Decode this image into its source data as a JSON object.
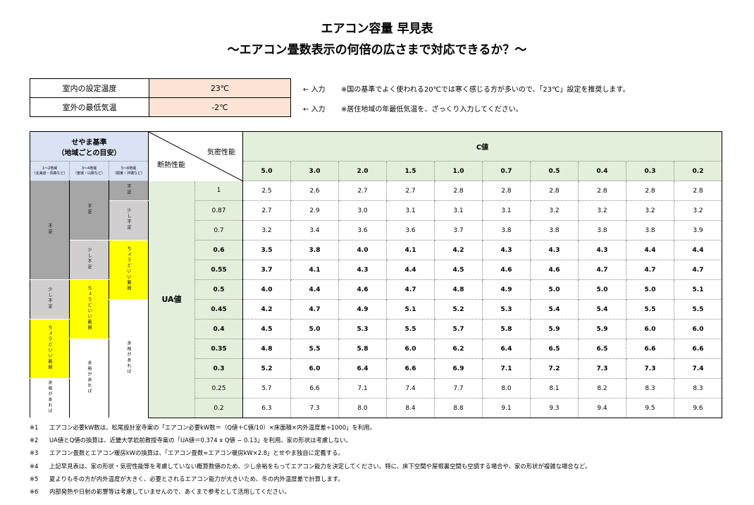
{
  "title": "エアコン容量 早見表",
  "subtitle": "～エアコン畳数表示の何倍の広さまで対応できるか？～",
  "settings": [
    {
      "label": "室内の設定温度",
      "value": "23℃",
      "arrow": "← 入力",
      "note": "※国の基準でよく使われる20℃では寒く感じる方が多いので、「23℃」設定を推奨します。"
    },
    {
      "label": "室外の最低気温",
      "value": "-2℃",
      "arrow": "← 入力",
      "note": "※居住地域の年最低気温を、ざっくり入力してください。"
    }
  ],
  "table": {
    "seyama_header": "せやま基準\n（地域ごとの目安）",
    "regions": [
      "1～2地域\n（北海道・青森など）",
      "3～4地域\n（宮城・山梨など）",
      "5～8地域\n（関東・沖縄など）"
    ],
    "airtight_label": "気密性能",
    "insulation_label": "断熱性能",
    "c_value_label": "C値",
    "ua_label": "UA値",
    "c_values": [
      "5.0",
      "3.0",
      "2.0",
      "1.5",
      "1.0",
      "0.7",
      "0.5",
      "0.4",
      "0.3",
      "0.2"
    ],
    "rows": [
      {
        "ua": "1",
        "bold": false,
        "values": [
          "2.5",
          "2.6",
          "2.7",
          "2.7",
          "2.8",
          "2.8",
          "2.8",
          "2.8",
          "2.8",
          "2.8"
        ]
      },
      {
        "ua": "0.87",
        "bold": false,
        "values": [
          "2.7",
          "2.9",
          "3.0",
          "3.1",
          "3.1",
          "3.1",
          "3.2",
          "3.2",
          "3.2",
          "3.2"
        ]
      },
      {
        "ua": "0.7",
        "bold": false,
        "values": [
          "3.2",
          "3.4",
          "3.6",
          "3.6",
          "3.7",
          "3.8",
          "3.8",
          "3.8",
          "3.8",
          "3.9"
        ]
      },
      {
        "ua": "0.6",
        "bold": true,
        "values": [
          "3.5",
          "3.8",
          "4.0",
          "4.1",
          "4.2",
          "4.3",
          "4.3",
          "4.3",
          "4.4",
          "4.4"
        ]
      },
      {
        "ua": "0.55",
        "bold": true,
        "values": [
          "3.7",
          "4.1",
          "4.3",
          "4.4",
          "4.5",
          "4.6",
          "4.6",
          "4.7",
          "4.7",
          "4.7"
        ]
      },
      {
        "ua": "0.5",
        "bold": true,
        "values": [
          "4.0",
          "4.4",
          "4.6",
          "4.7",
          "4.8",
          "4.9",
          "5.0",
          "5.0",
          "5.0",
          "5.1"
        ]
      },
      {
        "ua": "0.45",
        "bold": true,
        "values": [
          "4.2",
          "4.7",
          "4.9",
          "5.1",
          "5.2",
          "5.3",
          "5.4",
          "5.4",
          "5.5",
          "5.5"
        ]
      },
      {
        "ua": "0.4",
        "bold": true,
        "values": [
          "4.5",
          "5.0",
          "5.3",
          "5.5",
          "5.7",
          "5.8",
          "5.9",
          "5.9",
          "6.0",
          "6.0"
        ]
      },
      {
        "ua": "0.35",
        "bold": true,
        "values": [
          "4.8",
          "5.5",
          "5.8",
          "6.0",
          "6.2",
          "6.4",
          "6.5",
          "6.5",
          "6.6",
          "6.6"
        ]
      },
      {
        "ua": "0.3",
        "bold": true,
        "values": [
          "5.2",
          "6.0",
          "6.4",
          "6.6",
          "6.9",
          "7.1",
          "7.2",
          "7.3",
          "7.3",
          "7.4"
        ]
      },
      {
        "ua": "0.25",
        "bold": false,
        "values": [
          "5.7",
          "6.6",
          "7.1",
          "7.4",
          "7.7",
          "8.0",
          "8.1",
          "8.2",
          "8.3",
          "8.3"
        ]
      },
      {
        "ua": "0.2",
        "bold": false,
        "values": [
          "6.3",
          "7.3",
          "8.0",
          "8.4",
          "8.8",
          "9.1",
          "9.3",
          "9.4",
          "9.5",
          "9.6"
        ]
      }
    ],
    "levels": {
      "r1": [
        {
          "text": "不足",
          "color": "#a6a6a6"
        },
        {
          "text": "少し不足",
          "color": "#d0cece"
        },
        {
          "text": "ちょうどいい範囲",
          "color": "#ffff00"
        },
        {
          "text": "余裕があれば",
          "color": "#ffffff"
        }
      ],
      "r2": [
        {
          "text": "不足",
          "color": "#a6a6a6"
        },
        {
          "text": "少し不足",
          "color": "#d0cece"
        },
        {
          "text": "ちょうどいい範囲",
          "color": "#ffff00"
        },
        {
          "text": "余裕があれば",
          "color": "#ffffff"
        }
      ],
      "r3": [
        {
          "text": "不足",
          "color": "#a6a6a6"
        },
        {
          "text": "少し不足",
          "color": "#d0cece"
        },
        {
          "text": "ちょうどいい範囲",
          "color": "#ffff00"
        },
        {
          "text": "余裕があれば",
          "color": "#ffffff"
        }
      ]
    }
  },
  "footnotes": [
    {
      "num": "※1",
      "text": "エアコン必要kW数は、松尾設計室寺案の「エアコン必要kW数＝（Q値＋C値/10）×床面積×内外温度差÷1000」を利用。"
    },
    {
      "num": "※2",
      "text": "UA値とQ値の換算は、近畿大学岩前教授寺案の「UA値＝0.374 x Q値 − 0.13」を利用。家の形状は考慮しない。"
    },
    {
      "num": "※3",
      "text": "エアコン畳数とエアコン暖房kWの換算は、「エアコン畳数=エアコン暖房kW×2.8」とせやま独自に定義する。"
    },
    {
      "num": "※4",
      "text": "上記早見表は、家の形状・気密性能等を考慮していない概算数値のため、少し余裕をもってエアコン能力を決定してください。特に、床下空間や屋根裏空間も空調する場合や、家の形状が複雑な場合など。"
    },
    {
      "num": "※5",
      "text": "夏よりも冬の方が内外温度が大きく、必要とされるエアコン能力が大きいため、冬の内外温度差で計算します。"
    },
    {
      "num": "※6",
      "text": "内部発熱や日射の影響等は考慮していませんので、あくまで参考として活用してください。"
    }
  ]
}
